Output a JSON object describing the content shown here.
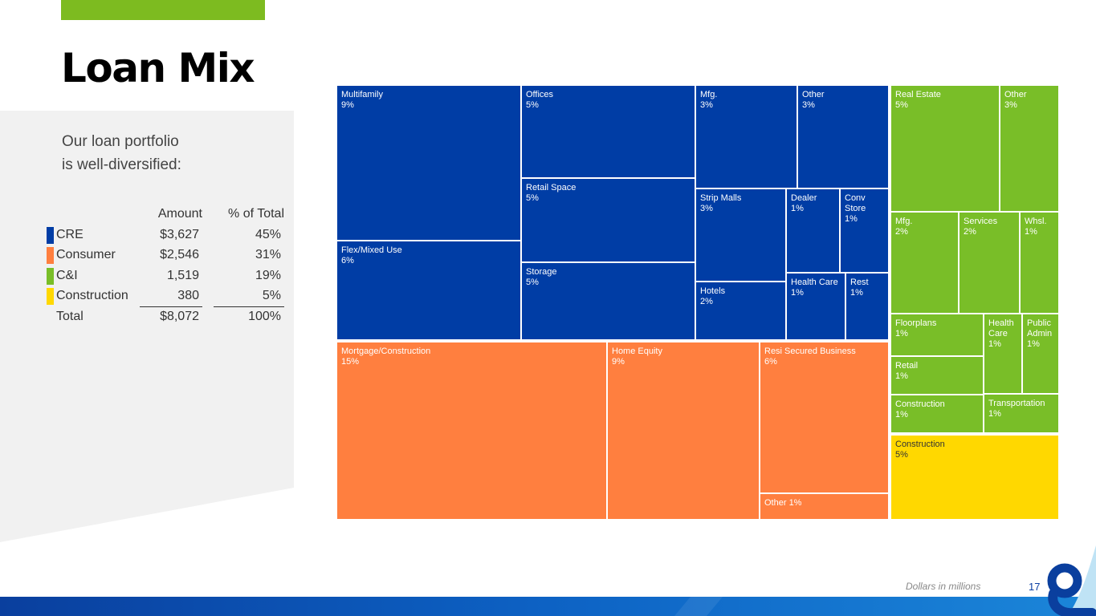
{
  "page": {
    "title": "Loan Mix",
    "intro": [
      "Our loan portfolio",
      "is well-diversified:"
    ],
    "footnote": "Dollars in millions",
    "page_number": "17"
  },
  "colors": {
    "accent_green": "#7dbb20",
    "cre": "#003da5",
    "consumer": "#ff7f3f",
    "cni": "#79be28",
    "construction": "#ffd800",
    "panel_gray": "#f1f1f1",
    "footer_blue": "#0a5cb8"
  },
  "summary": {
    "headers": {
      "amount": "Amount",
      "pct": "% of Total"
    },
    "rows": [
      {
        "label": "CRE",
        "amount": "$3,627",
        "pct": "45%",
        "color": "#003da5"
      },
      {
        "label": "Consumer",
        "amount": "$2,546",
        "pct": "31%",
        "color": "#ff7f3f"
      },
      {
        "label": "C&I",
        "amount": "1,519",
        "pct": "19%",
        "color": "#79be28"
      },
      {
        "label": "Construction",
        "amount": "380",
        "pct": "5%",
        "color": "#ffd800"
      }
    ],
    "total": {
      "label": "Total",
      "amount": "$8,072",
      "pct": "100%"
    }
  },
  "chart_data": {
    "type": "treemap",
    "unit": "% of total loans",
    "groups": [
      {
        "name": "CRE",
        "color": "#003da5",
        "items": [
          {
            "label": "Multifamily",
            "pct": "9%"
          },
          {
            "label": "Flex/Mixed Use",
            "pct": "6%"
          },
          {
            "label": "Offices",
            "pct": "5%"
          },
          {
            "label": "Retail Space",
            "pct": "5%"
          },
          {
            "label": "Storage",
            "pct": "5%"
          },
          {
            "label": "Mfg.",
            "pct": "3%"
          },
          {
            "label": "Other",
            "pct": "3%"
          },
          {
            "label": "Strip Malls",
            "pct": "3%"
          },
          {
            "label": "Dealer",
            "pct": "1%"
          },
          {
            "label": "Conv\nStore",
            "pct": "1%"
          },
          {
            "label": "Hotels",
            "pct": "2%"
          },
          {
            "label": "Health Care",
            "pct": "1%"
          },
          {
            "label": "Rest",
            "pct": "1%"
          }
        ]
      },
      {
        "name": "Consumer",
        "color": "#ff7f3f",
        "items": [
          {
            "label": "Mortgage/Construction",
            "pct": "15%"
          },
          {
            "label": "Home Equity",
            "pct": "9%"
          },
          {
            "label": "Resi Secured Business",
            "pct": "6%"
          },
          {
            "label": "Other 1%",
            "pct": ""
          }
        ]
      },
      {
        "name": "C&I",
        "color": "#79be28",
        "items": [
          {
            "label": "Real Estate",
            "pct": "5%"
          },
          {
            "label": "Other",
            "pct": "3%"
          },
          {
            "label": "Mfg.",
            "pct": "2%"
          },
          {
            "label": "Services",
            "pct": "2%"
          },
          {
            "label": "Whsl.",
            "pct": "1%"
          },
          {
            "label": "Floorplans",
            "pct": "1%"
          },
          {
            "label": "Health\nCare",
            "pct": "1%"
          },
          {
            "label": "Public\nAdmin",
            "pct": "1%"
          },
          {
            "label": "Retail",
            "pct": "1%"
          },
          {
            "label": "Construction",
            "pct": "1%"
          },
          {
            "label": "Transportation",
            "pct": "1%"
          }
        ]
      },
      {
        "name": "Construction",
        "color": "#ffd800",
        "items": [
          {
            "label": "Construction",
            "pct": "5%"
          }
        ]
      }
    ]
  }
}
